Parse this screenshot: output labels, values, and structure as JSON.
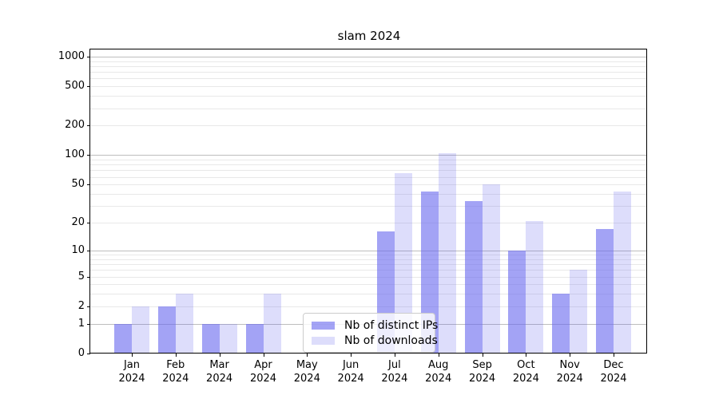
{
  "chart_data": {
    "type": "bar",
    "title": "slam 2024",
    "months": [
      "Jan",
      "Feb",
      "Mar",
      "Apr",
      "May",
      "Jun",
      "Jul",
      "Aug",
      "Sep",
      "Oct",
      "Nov",
      "Dec"
    ],
    "year_label": "2024",
    "series": [
      {
        "name": "Nb of distinct IPs",
        "color": "rgba(102,102,238,0.60)",
        "values": [
          1,
          2,
          1,
          1,
          0,
          0,
          16,
          42,
          34,
          10,
          3,
          17
        ]
      },
      {
        "name": "Nb of downloads",
        "color": "rgba(102,102,238,0.22)",
        "values": [
          2,
          3,
          1,
          3,
          0,
          0,
          65,
          105,
          50,
          21,
          6,
          42
        ]
      }
    ],
    "y_ticks": [
      0,
      1,
      2,
      5,
      10,
      20,
      50,
      100,
      200,
      500,
      1000
    ],
    "y_scale": "log10(1+v)",
    "ylim": [
      0,
      1200
    ],
    "grid": {
      "major_values": [
        1,
        10,
        100,
        1000
      ],
      "major_color": "#bdbdbd",
      "minor_color": "#e8e8e8",
      "on": true
    },
    "legend": {
      "position": "lower center",
      "frame": true
    },
    "xlabel": "",
    "ylabel": ""
  }
}
